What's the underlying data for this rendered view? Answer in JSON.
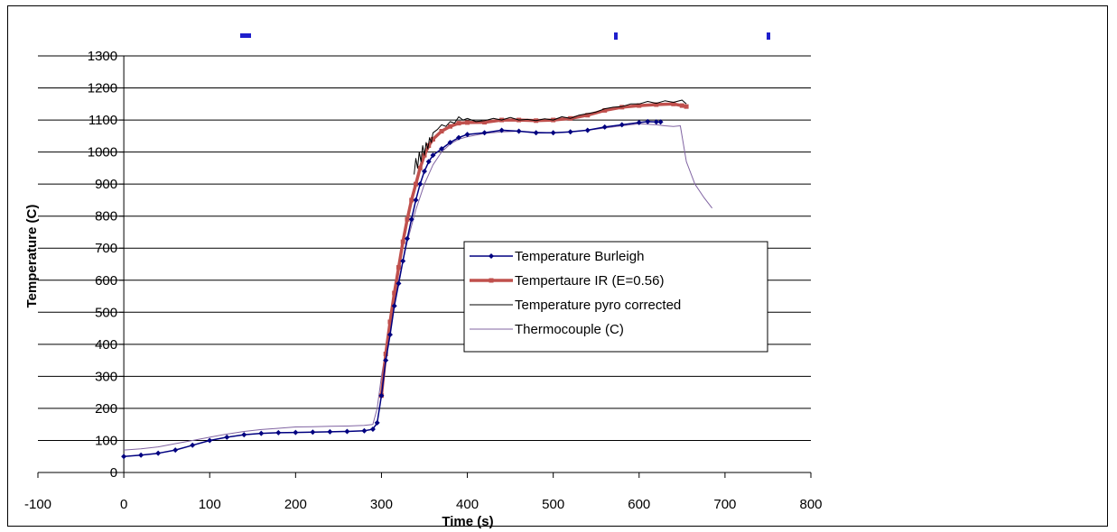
{
  "chart_data": {
    "type": "line",
    "title": "",
    "xlabel": "Time (s)",
    "ylabel": "Temperature (C)",
    "xlim": [
      -100,
      800
    ],
    "ylim": [
      0,
      1300
    ],
    "x_ticks": [
      -100,
      0,
      100,
      200,
      300,
      400,
      500,
      600,
      700,
      800
    ],
    "y_ticks": [
      0,
      100,
      200,
      300,
      400,
      500,
      600,
      700,
      800,
      900,
      1000,
      1100,
      1200,
      1300
    ],
    "grid": "horizontal",
    "legend_position": "center-right",
    "series": [
      {
        "name": "Temperature Burleigh",
        "color": "#000080",
        "marker": "diamond",
        "x": [
          0,
          20,
          40,
          60,
          80,
          100,
          120,
          140,
          160,
          180,
          200,
          220,
          240,
          260,
          280,
          290,
          295,
          300,
          305,
          310,
          315,
          320,
          325,
          330,
          335,
          340,
          345,
          350,
          355,
          360,
          370,
          380,
          390,
          400,
          420,
          440,
          460,
          480,
          500,
          520,
          540,
          560,
          580,
          600,
          610,
          620,
          625
        ],
        "values": [
          50,
          54,
          60,
          70,
          85,
          100,
          110,
          118,
          122,
          124,
          125,
          126,
          127,
          128,
          130,
          135,
          155,
          240,
          350,
          430,
          520,
          590,
          660,
          730,
          790,
          850,
          900,
          940,
          970,
          990,
          1010,
          1030,
          1045,
          1055,
          1060,
          1068,
          1065,
          1060,
          1060,
          1063,
          1068,
          1078,
          1085,
          1092,
          1095,
          1094,
          1094
        ]
      },
      {
        "name": "Tempertaure IR (E=0.56)",
        "color": "#C0504D",
        "marker": "square",
        "x": [
          300,
          305,
          310,
          315,
          320,
          325,
          330,
          335,
          340,
          345,
          350,
          355,
          360,
          370,
          380,
          390,
          400,
          420,
          440,
          460,
          480,
          500,
          520,
          540,
          560,
          580,
          600,
          620,
          640,
          650,
          655
        ],
        "values": [
          240,
          370,
          470,
          560,
          640,
          720,
          790,
          850,
          900,
          950,
          990,
          1020,
          1040,
          1065,
          1080,
          1090,
          1092,
          1093,
          1100,
          1100,
          1098,
          1100,
          1105,
          1115,
          1130,
          1140,
          1145,
          1148,
          1150,
          1145,
          1142
        ]
      },
      {
        "name": "Temperature pyro corrected",
        "color": "#000000",
        "marker": "none",
        "x": [
          338,
          340,
          342,
          344,
          346,
          348,
          350,
          352,
          354,
          356,
          358,
          360,
          365,
          370,
          375,
          380,
          385,
          390,
          395,
          400,
          410,
          420,
          430,
          440,
          450,
          460,
          470,
          480,
          490,
          500,
          510,
          520,
          530,
          540,
          550,
          560,
          570,
          580,
          590,
          600,
          610,
          620,
          630,
          640,
          650,
          655
        ],
        "values": [
          930,
          980,
          950,
          1000,
          970,
          1020,
          990,
          1030,
          1010,
          1045,
          1030,
          1060,
          1070,
          1085,
          1080,
          1095,
          1090,
          1110,
          1100,
          1105,
          1095,
          1098,
          1105,
          1100,
          1108,
          1100,
          1102,
          1098,
          1104,
          1100,
          1110,
          1105,
          1115,
          1120,
          1125,
          1135,
          1140,
          1142,
          1150,
          1150,
          1158,
          1152,
          1160,
          1155,
          1162,
          1150
        ]
      },
      {
        "name": "Thermocouple (C)",
        "color": "#8064A2",
        "marker": "none",
        "x": [
          0,
          20,
          40,
          60,
          80,
          100,
          120,
          140,
          160,
          180,
          200,
          220,
          240,
          260,
          280,
          290,
          295,
          300,
          305,
          310,
          315,
          320,
          330,
          340,
          350,
          360,
          370,
          380,
          390,
          400,
          420,
          440,
          460,
          480,
          500,
          520,
          540,
          560,
          580,
          600,
          620,
          630,
          640,
          648,
          655,
          665,
          675,
          685
        ],
        "values": [
          70,
          74,
          80,
          90,
          100,
          110,
          120,
          128,
          134,
          138,
          142,
          143,
          144,
          145,
          147,
          150,
          200,
          300,
          380,
          460,
          540,
          600,
          720,
          820,
          900,
          960,
          1000,
          1025,
          1040,
          1048,
          1058,
          1063,
          1065,
          1062,
          1060,
          1063,
          1068,
          1075,
          1082,
          1088,
          1085,
          1082,
          1080,
          1082,
          970,
          900,
          860,
          825
        ]
      }
    ]
  },
  "colors": {
    "background": "#FFFFFF",
    "gridline": "#000000",
    "title_fragment": "#1F1FCC"
  }
}
